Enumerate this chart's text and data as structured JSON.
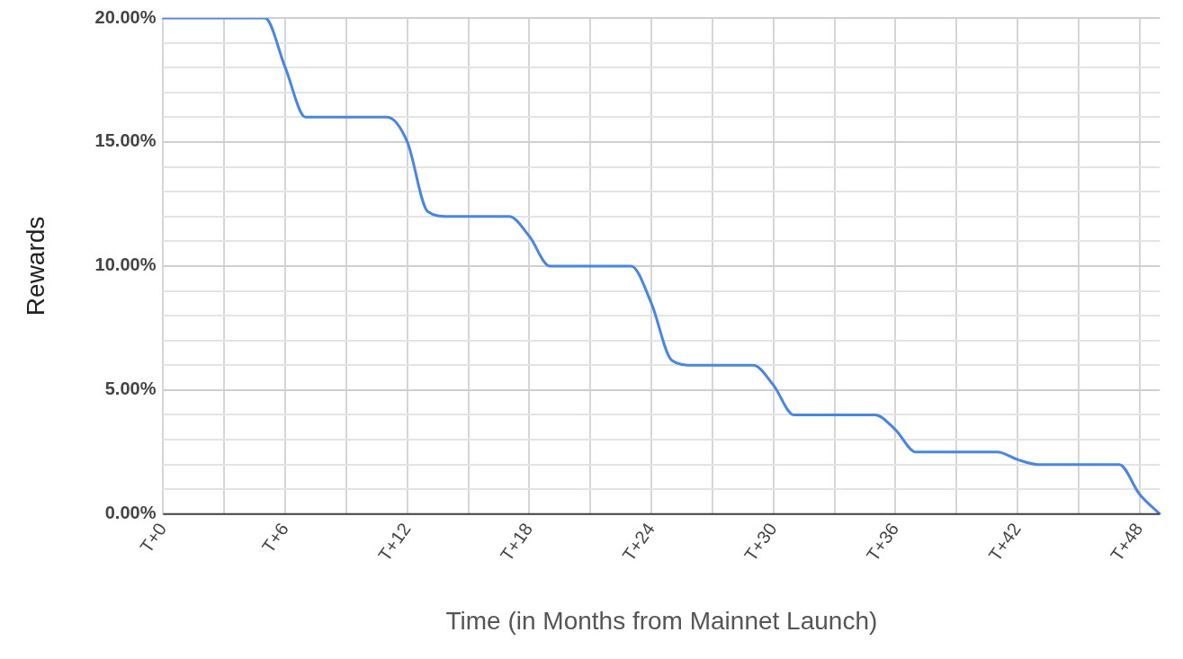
{
  "chart_data": {
    "type": "line",
    "xlabel": "Time (in Months from Mainnet Launch)",
    "ylabel": "Rewards",
    "categories": [
      "T+0",
      null,
      null,
      null,
      null,
      null,
      "T+6",
      null,
      null,
      null,
      null,
      null,
      "T+12",
      null,
      null,
      null,
      null,
      null,
      "T+18",
      null,
      null,
      null,
      null,
      null,
      "T+24",
      null,
      null,
      null,
      null,
      null,
      "T+30",
      null,
      null,
      null,
      null,
      null,
      "T+36",
      null,
      null,
      null,
      null,
      null,
      "T+42",
      null,
      null,
      null,
      null,
      null,
      "T+48",
      null
    ],
    "ylim": [
      0,
      20
    ],
    "yticks": [
      {
        "value": 0,
        "label": "0.00%"
      },
      {
        "value": 1,
        "label": null
      },
      {
        "value": 2,
        "label": null
      },
      {
        "value": 3,
        "label": null
      },
      {
        "value": 4,
        "label": null
      },
      {
        "value": 5,
        "label": "5.00%"
      },
      {
        "value": 6,
        "label": null
      },
      {
        "value": 7,
        "label": null
      },
      {
        "value": 8,
        "label": null
      },
      {
        "value": 9,
        "label": null
      },
      {
        "value": 10,
        "label": "10.00%"
      },
      {
        "value": 11,
        "label": null
      },
      {
        "value": 12,
        "label": null
      },
      {
        "value": 13,
        "label": null
      },
      {
        "value": 14,
        "label": null
      },
      {
        "value": 15,
        "label": "15.00%"
      },
      {
        "value": 16,
        "label": null
      },
      {
        "value": 17,
        "label": null
      },
      {
        "value": 18,
        "label": null
      },
      {
        "value": 19,
        "label": null
      },
      {
        "value": 20,
        "label": "20.00%"
      }
    ],
    "grid": true,
    "marker": "none",
    "line_style": "solid",
    "series": [
      {
        "color": "#4a86e0",
        "values": [
          20,
          20,
          20,
          20,
          20,
          20,
          18,
          16,
          16,
          16,
          16,
          16,
          15,
          12.2,
          12,
          12,
          12,
          12,
          11.2,
          10,
          10,
          10,
          10,
          10,
          8.5,
          6.2,
          6,
          6,
          6,
          6,
          5.2,
          4,
          4,
          4,
          4,
          4,
          3.4,
          2.5,
          2.5,
          2.5,
          2.5,
          2.5,
          2.2,
          2,
          2,
          2,
          2,
          2,
          0.8,
          0
        ]
      }
    ]
  }
}
